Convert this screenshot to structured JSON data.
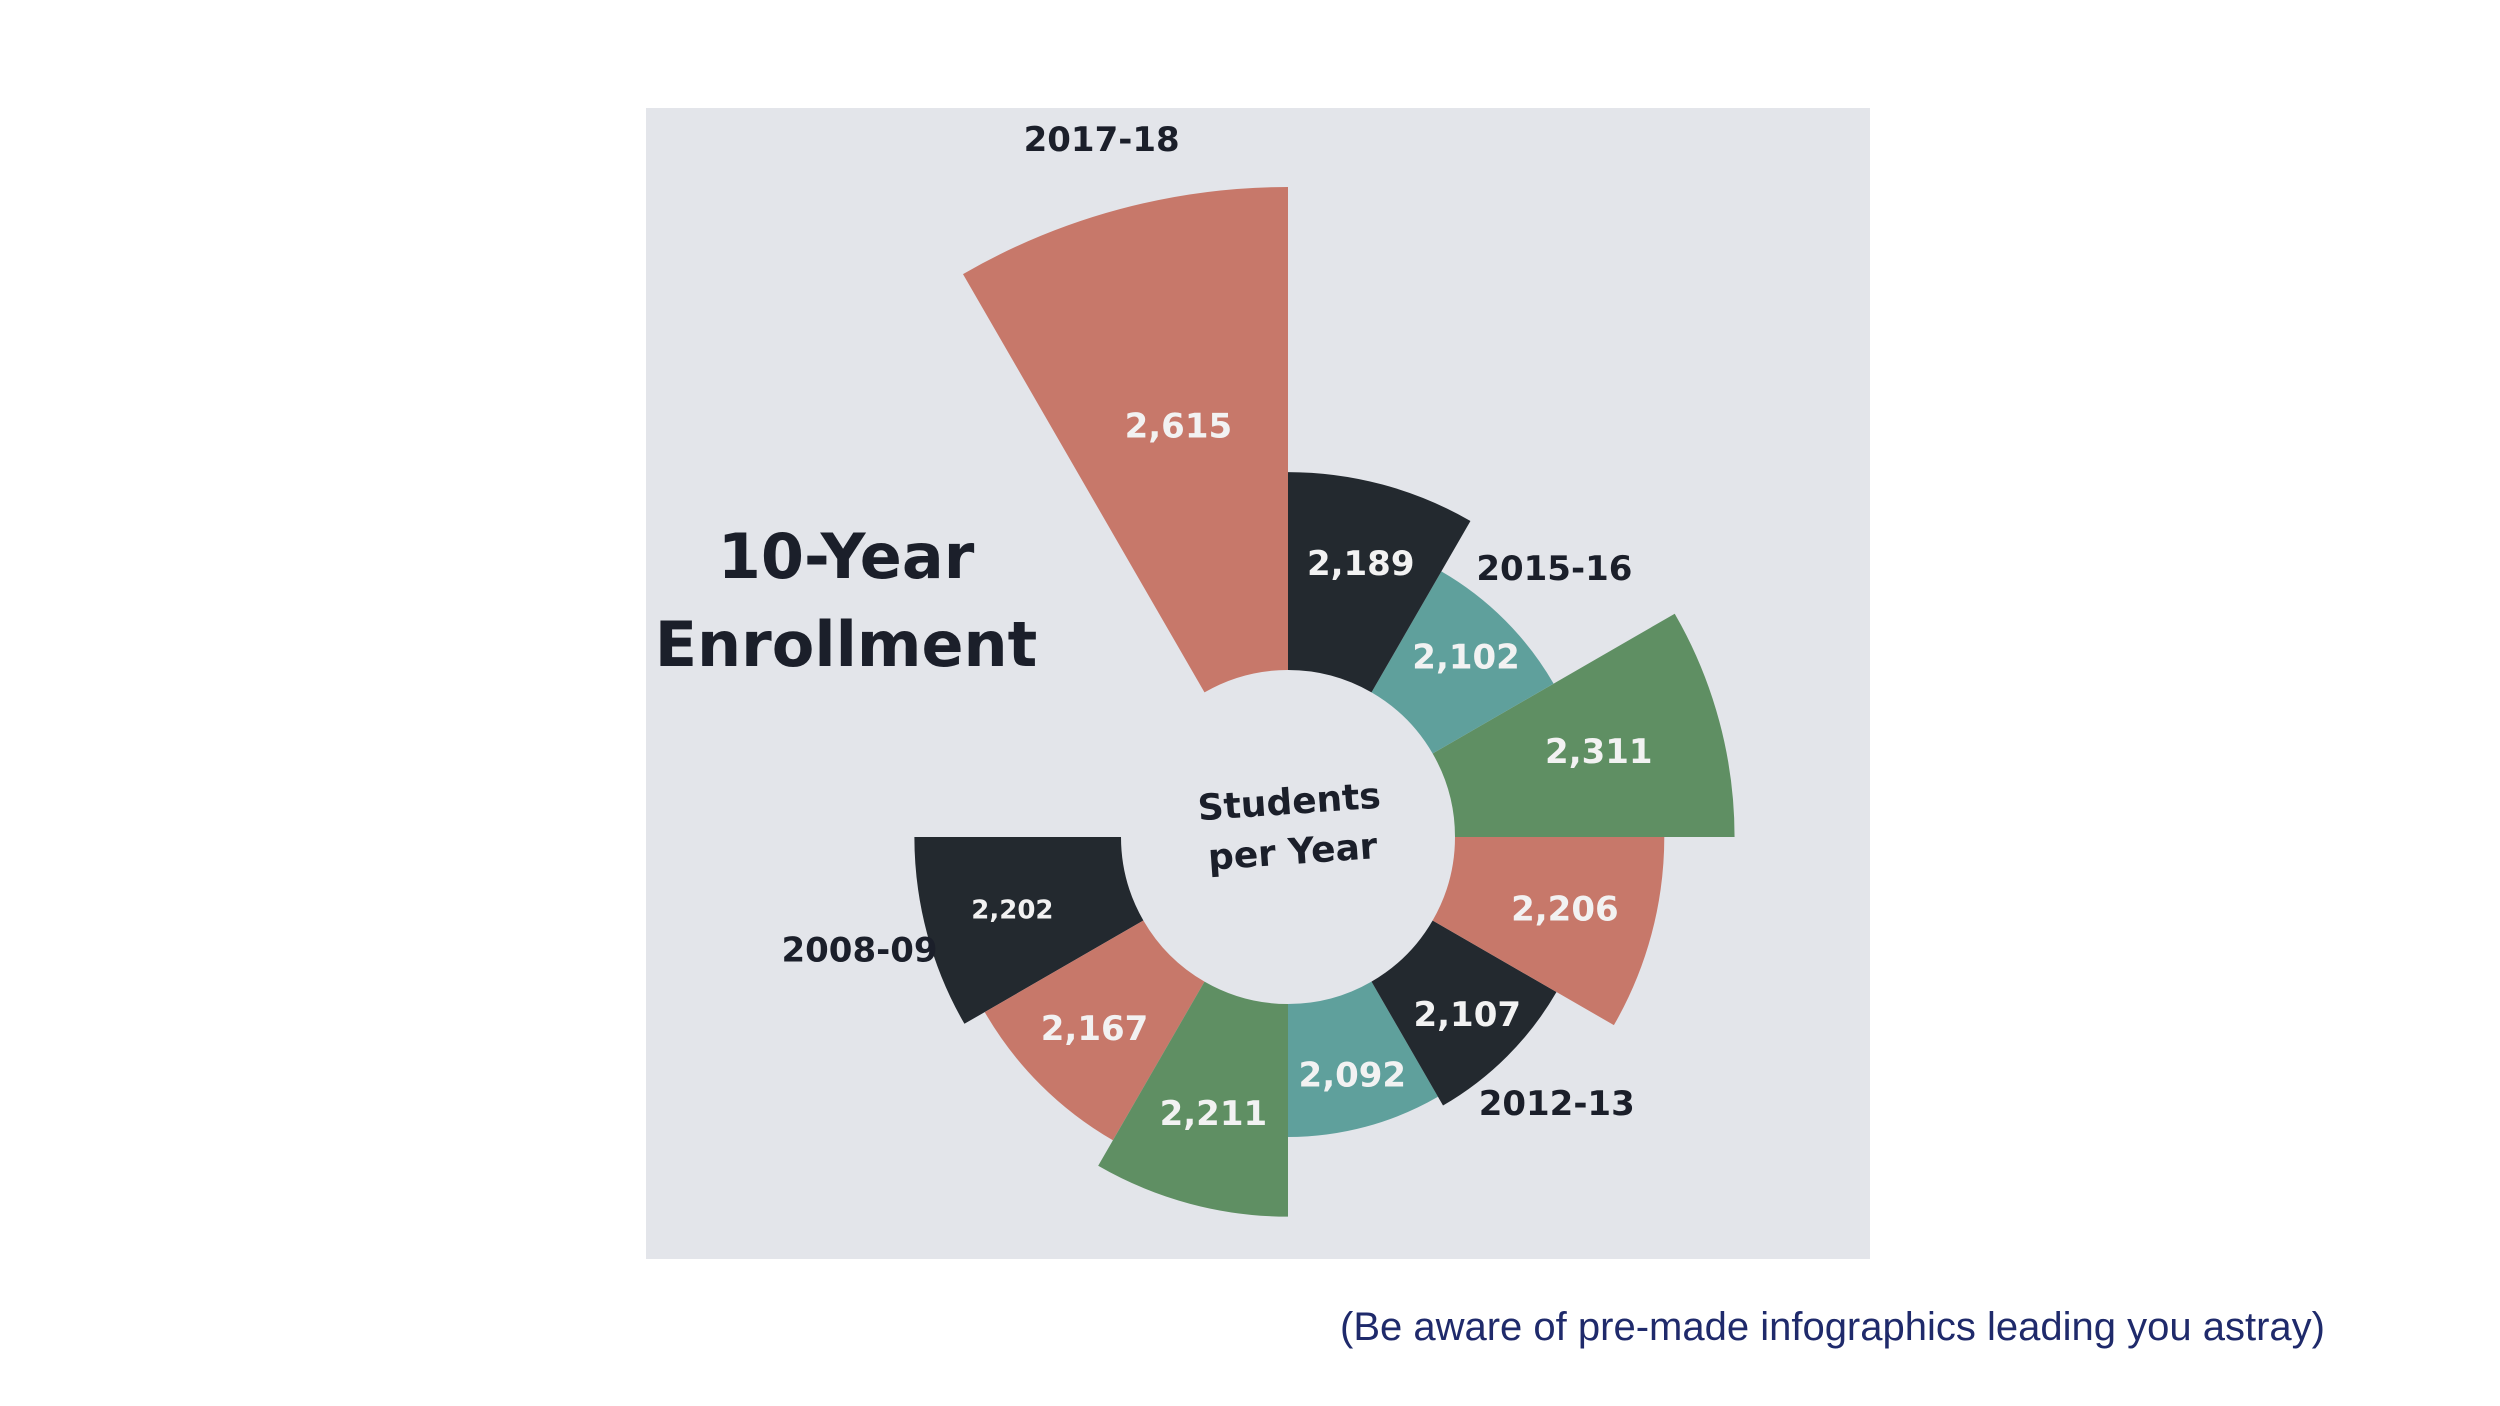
{
  "chart_data": {
    "type": "radial-bar",
    "title": "10-Year Enrollment",
    "center_label": "Students per Year",
    "caption": "(Be aware of pre-made infographics leading you astray)",
    "categories": [
      "2008-09",
      null,
      null,
      null,
      "2012-13",
      null,
      null,
      "2015-16",
      null,
      "2017-18"
    ],
    "values": [
      2202,
      2167,
      2211,
      2092,
      2107,
      2206,
      2311,
      2102,
      2189,
      2615
    ],
    "value_labels": [
      "2,202",
      "2,167",
      "2,211",
      "2,092",
      "2,107",
      "2,206",
      "2,311",
      "2,102",
      "2,189",
      "2,615"
    ],
    "colors": [
      "#23292f",
      "#c7786a",
      "#5f8f63",
      "#5fa09c",
      "#23292f",
      "#c7786a",
      "#5f8f63",
      "#5fa09c",
      "#23292f",
      "#c7786a"
    ]
  }
}
